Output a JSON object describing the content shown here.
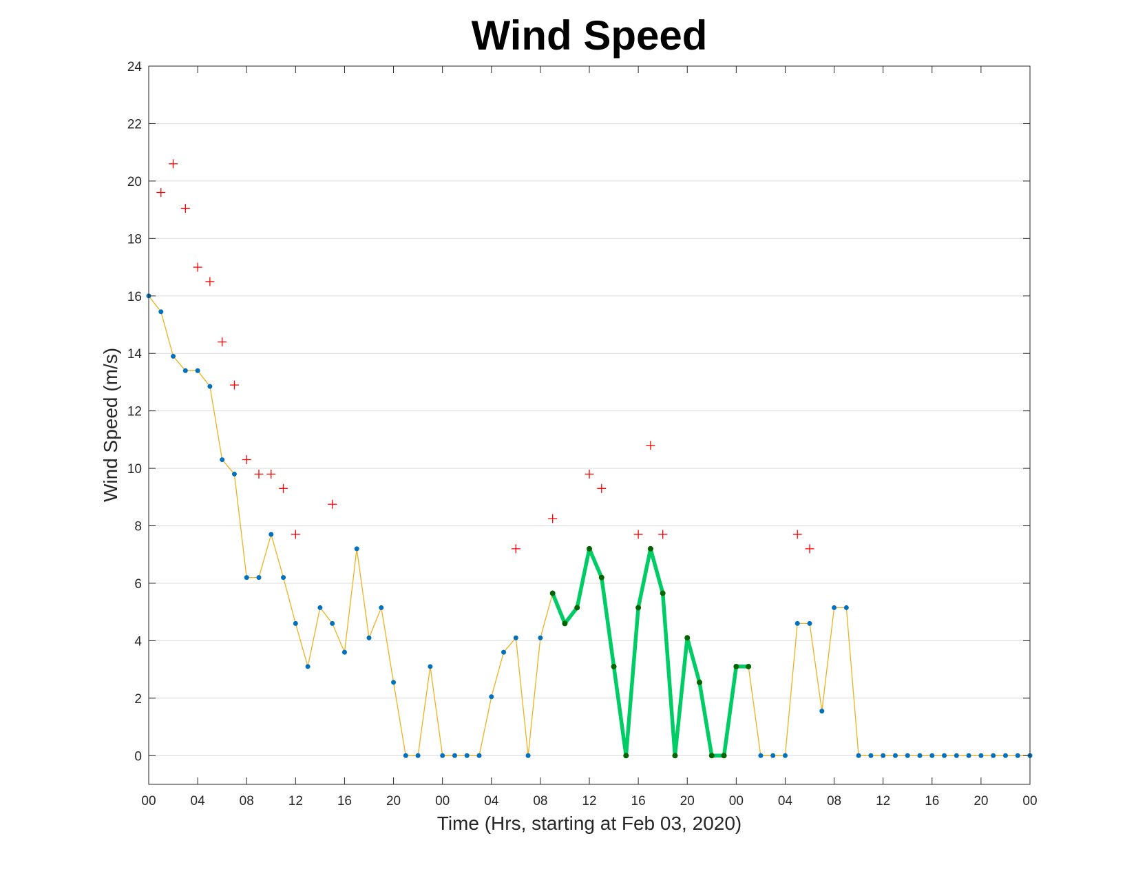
{
  "chart_data": {
    "type": "line",
    "title": "Wind Speed",
    "xlabel": "Time (Hrs, starting at Feb 03, 2020)",
    "ylabel": "Wind Speed (m/s)",
    "ylim": [
      -1,
      24
    ],
    "xlim_hours": [
      0,
      72
    ],
    "grid": "horizontal",
    "y_ticks": [
      "0",
      "2",
      "4",
      "6",
      "8",
      "10",
      "12",
      "14",
      "16",
      "18",
      "20",
      "22",
      "24"
    ],
    "x_tick_labels": [
      "00",
      "04",
      "08",
      "12",
      "16",
      "20",
      "00",
      "04",
      "08",
      "12",
      "16",
      "20",
      "00",
      "04",
      "08",
      "12",
      "16",
      "20",
      "00"
    ],
    "x_tick_step_hours": 4,
    "series": [
      {
        "role": "speed",
        "color": "#EDB120",
        "marker_color": "#0072BD",
        "hours": [
          0,
          1,
          2,
          3,
          4,
          5,
          6,
          7,
          8,
          9,
          10,
          11,
          12,
          13,
          14,
          15,
          16,
          17,
          18,
          19,
          20,
          21,
          22,
          23,
          24,
          25,
          26,
          27,
          28,
          29,
          30,
          31,
          32,
          33,
          34,
          35,
          36,
          37,
          38,
          39,
          40,
          41,
          42,
          43,
          44,
          45,
          46,
          47,
          48,
          49,
          50,
          51,
          52,
          53,
          54,
          55,
          56,
          57,
          58,
          59,
          60,
          61,
          62,
          63,
          64,
          65,
          66,
          67,
          68,
          69,
          70,
          71,
          72
        ],
        "values": [
          16.0,
          15.45,
          13.9,
          13.4,
          13.4,
          12.85,
          10.3,
          9.8,
          6.2,
          6.2,
          7.7,
          6.2,
          4.6,
          3.1,
          5.15,
          4.6,
          3.6,
          7.2,
          4.1,
          5.15,
          2.55,
          0,
          0,
          3.1,
          0,
          0,
          0,
          0,
          2.05,
          3.6,
          4.1,
          0,
          4.1,
          5.65,
          4.6,
          5.15,
          7.2,
          6.2,
          3.1,
          0,
          5.15,
          7.2,
          5.65,
          0,
          4.1,
          2.55,
          0,
          0,
          3.1,
          3.1,
          0,
          0,
          0,
          4.6,
          4.6,
          1.55,
          5.15,
          5.15,
          0,
          0,
          0,
          0,
          0,
          0,
          0,
          0,
          0,
          0,
          0,
          0,
          0,
          0,
          0
        ]
      },
      {
        "role": "highlighted",
        "color": "#00CC66",
        "marker_color": "#006400",
        "hours": [
          33,
          34,
          35,
          36,
          37,
          38,
          39,
          40,
          41,
          42,
          43,
          44,
          45,
          46,
          47,
          48,
          49
        ],
        "values": [
          5.65,
          4.6,
          5.15,
          7.2,
          6.2,
          3.1,
          0,
          5.15,
          7.2,
          5.65,
          0,
          4.1,
          2.55,
          0,
          0,
          3.1,
          3.1
        ]
      },
      {
        "role": "gust",
        "color": "#FF0000",
        "marker": "+",
        "hours": [
          1,
          2,
          3,
          4,
          5,
          6,
          7,
          8,
          9,
          10,
          11,
          12,
          15,
          30,
          33,
          36,
          37,
          40,
          41,
          42,
          53,
          54
        ],
        "values": [
          19.6,
          20.6,
          19.05,
          17.0,
          16.5,
          14.4,
          12.9,
          10.3,
          9.8,
          9.8,
          9.3,
          7.7,
          8.75,
          7.2,
          8.25,
          9.8,
          9.3,
          7.7,
          10.8,
          7.7,
          7.7,
          7.2
        ]
      }
    ]
  }
}
